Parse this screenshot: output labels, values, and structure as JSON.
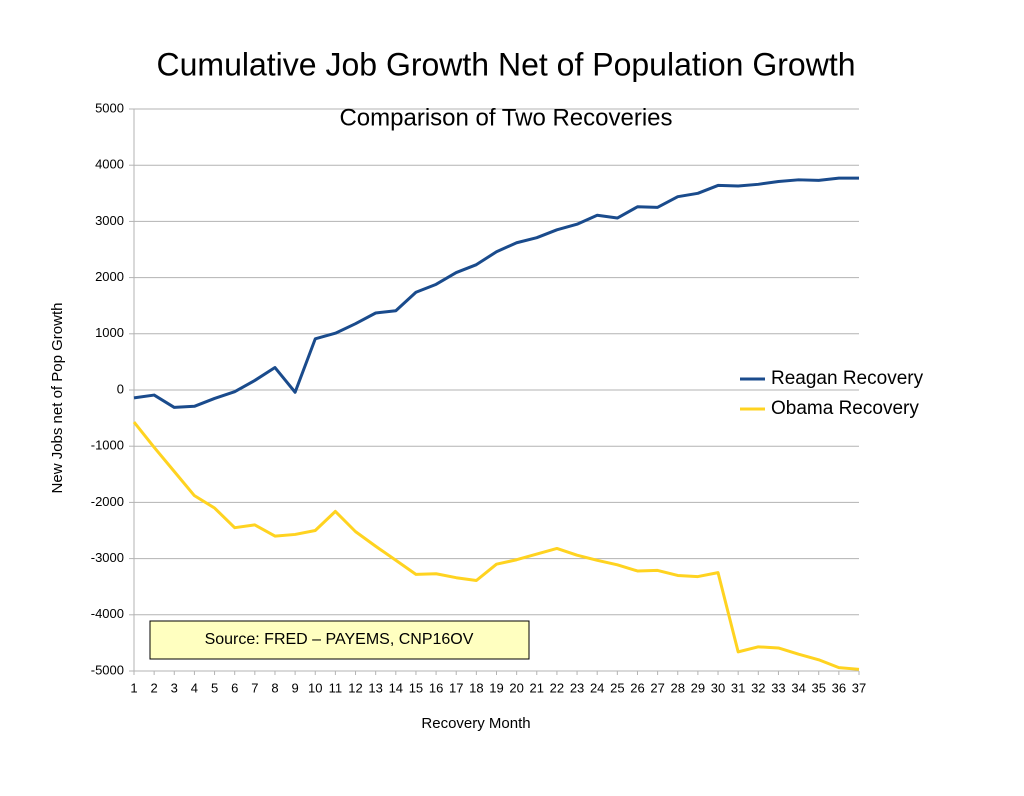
{
  "chart_data": {
    "type": "line",
    "title": "Cumulative Job Growth Net of Population Growth",
    "subtitle": "Comparison of Two Recoveries",
    "x_label": "Recovery Month",
    "y_label": "New Jobs net of Pop Growth",
    "annotation": "Source: FRED – PAYEMS, CNP16OV",
    "x": [
      1,
      2,
      3,
      4,
      5,
      6,
      7,
      8,
      9,
      10,
      11,
      12,
      13,
      14,
      15,
      16,
      17,
      18,
      19,
      20,
      21,
      22,
      23,
      24,
      25,
      26,
      27,
      28,
      29,
      30,
      31,
      32,
      33,
      34,
      35,
      36,
      37
    ],
    "series": [
      {
        "name": "Reagan Recovery",
        "color": "#1a4b8c",
        "values": [
          -140,
          -90,
          -310,
          -290,
          -150,
          -30,
          170,
          400,
          -40,
          910,
          1010,
          1180,
          1370,
          1410,
          1740,
          1880,
          2090,
          2230,
          2460,
          2620,
          2710,
          2850,
          2950,
          3110,
          3060,
          3260,
          3250,
          3440,
          3500,
          3640,
          3630,
          3660,
          3710,
          3740,
          3730,
          3770,
          3770
        ]
      },
      {
        "name": "Obama Recovery",
        "color": "#ffd320",
        "values": [
          -570,
          -1020,
          -1450,
          -1880,
          -2100,
          -2450,
          -2400,
          -2600,
          -2570,
          -2500,
          -2160,
          -2520,
          -2780,
          -3030,
          -3280,
          -3270,
          -3340,
          -3390,
          -3100,
          -3020,
          -2920,
          -2820,
          -2940,
          -3030,
          -3110,
          -3220,
          -3210,
          -3300,
          -3320,
          -3250,
          -4660,
          -4570,
          -4590,
          -4700,
          -4800,
          -4940,
          -4970
        ]
      }
    ],
    "xlim": [
      1,
      37
    ],
    "xticks": [
      1,
      2,
      3,
      4,
      5,
      6,
      7,
      8,
      9,
      10,
      11,
      12,
      13,
      14,
      15,
      16,
      17,
      18,
      19,
      20,
      21,
      22,
      23,
      24,
      25,
      26,
      27,
      28,
      29,
      30,
      31,
      32,
      33,
      34,
      35,
      36,
      37
    ],
    "ylim": [
      -5000,
      5000
    ],
    "yticks": [
      -5000,
      -4000,
      -3000,
      -2000,
      -1000,
      0,
      1000,
      2000,
      3000,
      4000,
      5000
    ],
    "grid": true,
    "legend": "right"
  }
}
